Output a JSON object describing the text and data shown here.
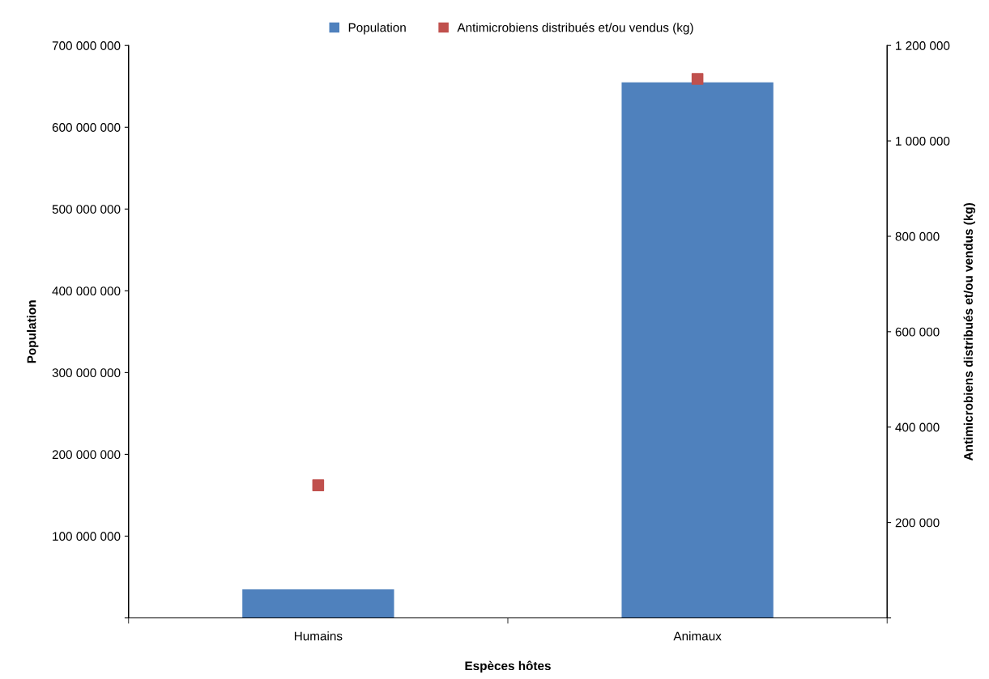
{
  "chart_data": {
    "type": "bar",
    "xlabel": "Espèces hôtes",
    "ylabel": "Population",
    "y2label": "Antimicrobiens distribués et/ou vendus (kg)",
    "categories": [
      "Humains",
      "Animaux"
    ],
    "series": [
      {
        "name": "Population",
        "color": "#4f81bd",
        "values": [
          35000000,
          655000000
        ]
      },
      {
        "name": "Antimicrobiens distribués et/ou vendus (kg)",
        "type": "scatter",
        "axis": "y2",
        "color": "#c0504d",
        "values": [
          278000,
          1130000
        ]
      }
    ],
    "ylim": [
      0,
      700000000
    ],
    "yticks": [
      {
        "value": 0,
        "label": null
      },
      {
        "value": 100000000,
        "label": "100 000 000"
      },
      {
        "value": 200000000,
        "label": "200 000 000"
      },
      {
        "value": 300000000,
        "label": "300 000 000"
      },
      {
        "value": 400000000,
        "label": "400 000 000"
      },
      {
        "value": 500000000,
        "label": "500 000 000"
      },
      {
        "value": 600000000,
        "label": "600 000 000"
      },
      {
        "value": 700000000,
        "label": "700 000 000"
      }
    ],
    "y2lim": [
      0,
      1200000
    ],
    "y2ticks": [
      {
        "value": 0,
        "label": null
      },
      {
        "value": 200000,
        "label": "200 000"
      },
      {
        "value": 400000,
        "label": "400 000"
      },
      {
        "value": 600000,
        "label": "600 000"
      },
      {
        "value": 800000,
        "label": "800 000"
      },
      {
        "value": 1000000,
        "label": "1 000 000"
      },
      {
        "value": 1200000,
        "label": "1 200 000"
      }
    ],
    "legend": "top",
    "grid": false,
    "marker": "square"
  }
}
